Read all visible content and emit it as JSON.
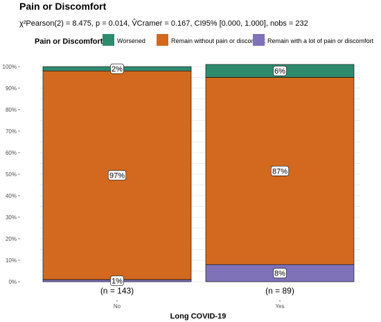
{
  "chart_data": {
    "type": "bar",
    "stacked": true,
    "percent": true,
    "title": "Pain or Discomfort",
    "subtitle": "χ²Pearson(2) = 8.475, p = 0.014, V̂Cramer = 0.167, CI95% [0.000, 1.000], nobs = 232",
    "legend_title": "Pain or Discomfort",
    "legend_position": "top",
    "xlabel": "Long COVID-19",
    "ylabel": "",
    "ylim": [
      0,
      100
    ],
    "y_ticks": [
      "0%",
      "10%",
      "20%",
      "30%",
      "40%",
      "50%",
      "60%",
      "70%",
      "80%",
      "90%",
      "100%"
    ],
    "categories": [
      "No",
      "Yes"
    ],
    "counts": [
      "(n = 143)",
      "(n = 89)"
    ],
    "series": [
      {
        "name": "Worsened",
        "color": "#2e8b6e",
        "values": [
          2,
          6
        ],
        "labels": [
          "2%",
          "6%"
        ]
      },
      {
        "name": "Remain without pain or discomfort",
        "color": "#d2691e",
        "values": [
          97,
          87
        ],
        "labels": [
          "97%",
          "87%"
        ]
      },
      {
        "name": "Remain with a lot of pain or discomfort",
        "color": "#7f72b8",
        "values": [
          1,
          8
        ],
        "labels": [
          "1%",
          "8%"
        ]
      }
    ],
    "grid": true
  }
}
